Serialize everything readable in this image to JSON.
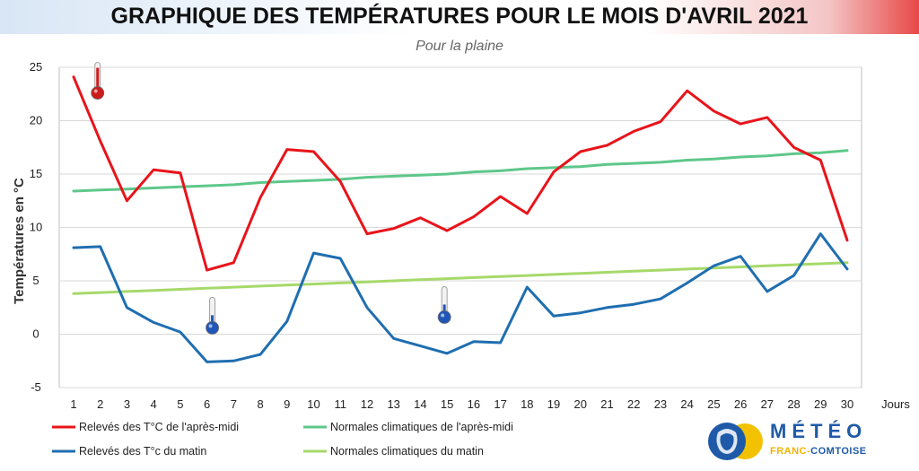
{
  "header": {
    "title": "GRAPHIQUE DES TEMPÉRATURES POUR LE MOIS D'AVRIL 2021",
    "subtitle": "Pour la plaine"
  },
  "chart_data": {
    "type": "line",
    "title": "GRAPHIQUE DES TEMPÉRATURES POUR LE MOIS D'AVRIL 2021",
    "subtitle": "Pour la plaine",
    "xlabel": "Jours",
    "ylabel": "Températures en °C",
    "ylim": [
      -5,
      25
    ],
    "yticks": [
      -5,
      0,
      5,
      10,
      15,
      20,
      25
    ],
    "grid": "horizontal",
    "legend_position": "bottom",
    "x": [
      1,
      2,
      3,
      4,
      5,
      6,
      7,
      8,
      9,
      10,
      11,
      12,
      13,
      14,
      15,
      16,
      17,
      18,
      19,
      20,
      21,
      22,
      23,
      24,
      25,
      26,
      27,
      28,
      29,
      30
    ],
    "series": [
      {
        "name": "Relevés des T°C de l'après-midi",
        "color": "#e8141b",
        "values": [
          24.1,
          18.1,
          12.5,
          15.4,
          15.1,
          6.0,
          6.7,
          12.8,
          17.3,
          17.1,
          14.3,
          9.4,
          9.9,
          10.9,
          9.7,
          11.0,
          12.9,
          11.3,
          15.2,
          17.1,
          17.7,
          19.0,
          19.9,
          22.8,
          20.9,
          19.7,
          20.3,
          17.5,
          16.3,
          8.8
        ]
      },
      {
        "name": "Relevés des T°c du matin",
        "color": "#1f6eb0",
        "values": [
          8.1,
          8.2,
          2.5,
          1.1,
          0.2,
          -2.6,
          -2.5,
          -1.9,
          1.2,
          7.6,
          7.1,
          2.5,
          -0.4,
          -1.1,
          -1.8,
          -0.7,
          -0.8,
          4.4,
          1.7,
          2.0,
          2.5,
          2.8,
          3.3,
          4.8,
          6.4,
          7.3,
          4.0,
          5.5,
          9.4,
          6.1
        ]
      },
      {
        "name": "Normales climatiques de l'après-midi",
        "color": "#5ec78a",
        "values": [
          13.4,
          13.5,
          13.6,
          13.7,
          13.8,
          13.9,
          14.0,
          14.2,
          14.3,
          14.4,
          14.5,
          14.7,
          14.8,
          14.9,
          15.0,
          15.2,
          15.3,
          15.5,
          15.6,
          15.7,
          15.9,
          16.0,
          16.1,
          16.3,
          16.4,
          16.6,
          16.7,
          16.9,
          17.0,
          17.2
        ]
      },
      {
        "name": "Normales climatiques du matin",
        "color": "#a6d96a",
        "values": [
          3.8,
          3.9,
          4.0,
          4.1,
          4.2,
          4.3,
          4.4,
          4.5,
          4.6,
          4.7,
          4.8,
          4.9,
          5.0,
          5.1,
          5.2,
          5.3,
          5.4,
          5.5,
          5.6,
          5.7,
          5.8,
          5.9,
          6.0,
          6.1,
          6.2,
          6.3,
          6.4,
          6.5,
          6.6,
          6.7
        ]
      }
    ]
  },
  "legend": {
    "items": [
      {
        "label": "Relevés des T°C de l'après-midi",
        "color": "#e8141b"
      },
      {
        "label": "Normales climatiques de l'après-midi",
        "color": "#5ec78a"
      },
      {
        "label": "Relevés des T°c du matin",
        "color": "#1f6eb0"
      },
      {
        "label": "Normales climatiques du matin",
        "color": "#a6d96a"
      }
    ]
  },
  "decorations": {
    "thermometers": [
      {
        "icon": "thermometer-hot-icon",
        "color": "#cc1c1c",
        "day": 1.9,
        "temp": 22.6
      },
      {
        "icon": "thermometer-cold-icon",
        "color": "#1f57b8",
        "day": 6.2,
        "temp": 0.6
      },
      {
        "icon": "thermometer-cold-icon",
        "color": "#1f57b8",
        "day": 14.9,
        "temp": 1.6
      }
    ]
  },
  "logo": {
    "icon": "lion-sun-logo-icon",
    "word": "MÉTÉO",
    "sub_a": "FRANC-",
    "sub_b": "COMTOISE"
  },
  "colors": {
    "grid": "#d9d9d9",
    "axis": "#bfbfbf"
  }
}
